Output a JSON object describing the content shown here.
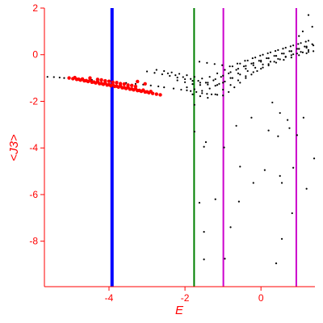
{
  "chart_data": {
    "type": "scatter",
    "title": "",
    "xlabel": "E",
    "ylabel": "<J3>",
    "xlim": [
      -5.7,
      1.42
    ],
    "ylim": [
      -9.95,
      2.0
    ],
    "grid": false,
    "colors": {
      "axes": "#ff0000",
      "points": "#000000",
      "highlight": "#ff0000",
      "line_blue": "#0000ff",
      "line_green": "#008000",
      "line_magenta": "#cc00cc"
    },
    "x_ticks": [
      {
        "value": -4,
        "label": "-4"
      },
      {
        "value": -2,
        "label": "-2"
      },
      {
        "value": 0,
        "label": "0"
      }
    ],
    "y_ticks": [
      {
        "value": 2,
        "label": "2"
      },
      {
        "value": 0,
        "label": "0"
      },
      {
        "value": -2,
        "label": "-2"
      },
      {
        "value": -4,
        "label": "-4"
      },
      {
        "value": -6,
        "label": "-6"
      },
      {
        "value": -8,
        "label": "-8"
      }
    ],
    "vertical_lines": [
      {
        "x": -3.92,
        "color": "#0000ff",
        "width": "thick"
      },
      {
        "x": -1.76,
        "color": "#008000",
        "width": "thin"
      },
      {
        "x": -0.99,
        "color": "#cc00cc",
        "width": "thin"
      },
      {
        "x": 0.93,
        "color": "#cc00cc",
        "width": "thin"
      }
    ],
    "series": [
      {
        "color": "#000000",
        "x": [
          -5.62,
          -5.45,
          -5.3,
          -5.18,
          -4.95,
          -4.7,
          -4.45,
          -4.22,
          -4.0,
          -3.78,
          -3.55,
          -3.3,
          -3.1,
          -2.9,
          -2.7,
          -2.55,
          -2.3,
          -2.1,
          -1.95,
          -1.85,
          -1.7,
          -1.55,
          -1.42,
          -1.3,
          -1.15,
          -1.0,
          -0.85,
          -0.7,
          -0.55,
          -0.4,
          -0.25,
          -0.1,
          0.05,
          0.2,
          0.35,
          0.5,
          0.65,
          0.8,
          0.95,
          1.1,
          1.25,
          1.38,
          -3.0,
          -2.8,
          -2.6,
          -2.4,
          -2.2,
          -2.0,
          -1.8,
          -1.6,
          -1.4,
          -1.2,
          -1.0,
          -0.8,
          -0.6,
          -0.4,
          -0.2,
          0.0,
          0.2,
          0.4,
          0.6,
          0.8,
          1.0,
          1.2,
          1.38,
          -2.75,
          -2.55,
          -2.35,
          -2.15,
          -1.95,
          -1.75,
          -1.55,
          -1.35,
          -1.15,
          -0.95,
          -0.75,
          -0.55,
          -0.35,
          -0.15,
          0.05,
          0.25,
          0.45,
          0.65,
          0.85,
          1.05,
          1.25,
          -2.45,
          -2.25,
          -2.05,
          -1.85,
          -1.65,
          -1.45,
          -1.25,
          -1.05,
          -0.85,
          -0.65,
          -0.45,
          -0.25,
          -0.05,
          0.15,
          0.35,
          0.55,
          0.75,
          0.95,
          1.15,
          1.35,
          -2.2,
          -2.0,
          -1.8,
          -1.6,
          -1.4,
          -1.2,
          -1.0,
          -0.8,
          -0.6,
          -0.4,
          -0.2,
          0.0,
          0.2,
          0.4,
          0.6,
          0.8,
          1.0,
          1.2,
          -1.95,
          -1.75,
          -1.55,
          -1.35,
          -1.15,
          -0.95,
          -0.75,
          -0.55,
          -0.35,
          -0.15,
          0.05,
          0.25,
          0.45,
          0.65,
          0.85,
          1.05,
          1.25,
          -1.8,
          -1.6,
          -1.4,
          -1.2,
          -1.0,
          -0.8,
          -0.6,
          -0.4,
          -0.2,
          0.0,
          0.2,
          0.4,
          0.6,
          0.8,
          1.0,
          1.2,
          -1.62,
          -1.42,
          -1.22,
          -1.02,
          -0.82,
          -0.62,
          -0.42,
          -0.22,
          -0.02,
          0.18,
          0.38,
          0.58,
          0.78,
          0.98,
          1.18,
          -1.75,
          -0.97,
          -1.45,
          -0.55,
          0.1,
          0.45,
          0.95,
          1.4,
          1.35,
          -0.25,
          0.75,
          -0.65,
          0.2,
          0.55,
          -1.5,
          -1.2,
          0.5,
          1.2,
          -1.62,
          -0.58,
          -0.2,
          0.85,
          -1.5,
          -0.8,
          0.55,
          0.82,
          1.0,
          1.1,
          1.25,
          -1.5,
          -0.95,
          0.4,
          -1.75,
          0.3,
          0.5,
          0.7,
          1.12,
          -1.1
        ],
        "y": [
          -0.95,
          -0.96,
          -0.98,
          -1.0,
          -1.02,
          -1.05,
          -1.08,
          -1.11,
          -1.14,
          -1.17,
          -1.21,
          -1.25,
          -1.28,
          -1.32,
          -1.36,
          -1.4,
          -1.45,
          -1.5,
          -1.53,
          -1.56,
          -1.6,
          -1.65,
          -1.68,
          -1.7,
          -1.72,
          -1.75,
          -1.6,
          -1.4,
          -1.2,
          -1.0,
          -0.85,
          -0.7,
          -0.55,
          -0.4,
          -0.3,
          -0.2,
          -0.1,
          -0.02,
          0.05,
          0.1,
          0.12,
          0.15,
          -0.72,
          -0.78,
          -0.84,
          -0.91,
          -0.98,
          -1.05,
          -1.12,
          -1.2,
          -1.28,
          -1.33,
          -1.2,
          -1.0,
          -0.8,
          -0.6,
          -0.45,
          -0.3,
          -0.15,
          -0.05,
          0.05,
          0.15,
          0.25,
          0.3,
          0.4,
          -0.65,
          -0.7,
          -0.76,
          -0.82,
          -0.88,
          -0.95,
          -1.02,
          -0.95,
          -0.8,
          -0.65,
          -0.5,
          -0.38,
          -0.25,
          -0.12,
          0.0,
          0.1,
          0.2,
          0.3,
          0.4,
          0.5,
          0.6,
          -0.8,
          -0.88,
          -0.96,
          -1.04,
          -1.12,
          -1.2,
          -1.1,
          -0.95,
          -0.8,
          -0.65,
          -0.5,
          -0.38,
          -0.26,
          -0.15,
          -0.05,
          0.05,
          0.15,
          0.25,
          0.35,
          0.45,
          -1.1,
          -1.18,
          -1.26,
          -1.3,
          -1.2,
          -1.05,
          -0.9,
          -0.75,
          -0.6,
          -0.48,
          -0.36,
          -0.25,
          -0.15,
          -0.05,
          0.05,
          0.15,
          0.25,
          0.35,
          -1.4,
          -1.48,
          -1.55,
          -1.45,
          -1.3,
          -1.15,
          -1.0,
          -0.85,
          -0.7,
          -0.56,
          -0.42,
          -0.3,
          -0.18,
          -0.08,
          0.02,
          0.12,
          0.2,
          -1.7,
          -1.78,
          -1.85,
          -1.7,
          -1.5,
          -1.3,
          -1.1,
          -0.92,
          -0.75,
          -0.6,
          -0.46,
          -0.34,
          -0.22,
          -0.12,
          -0.02,
          0.06,
          -0.3,
          -0.35,
          -0.4,
          -0.45,
          -0.5,
          -0.38,
          -0.26,
          -0.15,
          -0.04,
          0.06,
          0.16,
          0.26,
          0.36,
          0.46,
          0.56,
          -3.3,
          -3.98,
          -3.75,
          -4.8,
          -4.95,
          -3.5,
          -3.45,
          -4.45,
          1.2,
          -2.7,
          -3.15,
          -3.05,
          -3.25,
          -5.5,
          -3.95,
          -6.2,
          -5.2,
          -5.75,
          -6.35,
          -6.3,
          -5.5,
          -4.85,
          -7.6,
          -7.4,
          -7.9,
          -6.8,
          0.8,
          1.0,
          1.7,
          -8.78,
          -8.75,
          -8.95,
          -2.15,
          -2.05,
          -2.5,
          -2.8,
          -2.7,
          -1.25
        ]
      },
      {
        "color": "#ff0000",
        "x": [
          -5.05,
          -4.95,
          -4.85,
          -4.75,
          -4.65,
          -4.55,
          -4.45,
          -4.35,
          -4.25,
          -4.15,
          -4.05,
          -3.95,
          -3.85,
          -3.75,
          -3.65,
          -3.55,
          -3.45,
          -3.35,
          -3.25,
          -3.15,
          -3.05,
          -2.95,
          -2.85,
          -2.75,
          -2.65,
          -4.9,
          -4.7,
          -4.5,
          -4.3,
          -4.1,
          -3.9,
          -3.7,
          -3.5,
          -3.3,
          -3.1,
          -2.9,
          -4.8,
          -4.6,
          -4.4,
          -4.2,
          -4.0,
          -3.8,
          -3.6,
          -3.4,
          -3.2,
          -3.0,
          -4.5,
          -4.3,
          -4.1,
          -3.9,
          -3.7,
          -3.5,
          -3.3,
          -4.2,
          -4.0,
          -3.8,
          -3.6,
          -3.4,
          -3.25,
          -3.05
        ],
        "y": [
          -1.0,
          -1.03,
          -1.06,
          -1.09,
          -1.12,
          -1.15,
          -1.18,
          -1.21,
          -1.24,
          -1.27,
          -1.3,
          -1.33,
          -1.36,
          -1.39,
          -1.42,
          -1.45,
          -1.48,
          -1.51,
          -1.54,
          -1.57,
          -1.6,
          -1.63,
          -1.66,
          -1.69,
          -1.72,
          -0.98,
          -1.04,
          -1.1,
          -1.16,
          -1.22,
          -1.28,
          -1.34,
          -1.4,
          -1.46,
          -1.52,
          -1.58,
          -1.05,
          -1.11,
          -1.17,
          -1.23,
          -1.29,
          -1.35,
          -1.41,
          -1.47,
          -1.53,
          -1.59,
          -1.0,
          -1.06,
          -1.12,
          -1.18,
          -1.24,
          -1.3,
          -1.36,
          -1.08,
          -1.14,
          -1.2,
          -1.26,
          -1.32,
          -1.15,
          -1.25
        ]
      }
    ]
  }
}
